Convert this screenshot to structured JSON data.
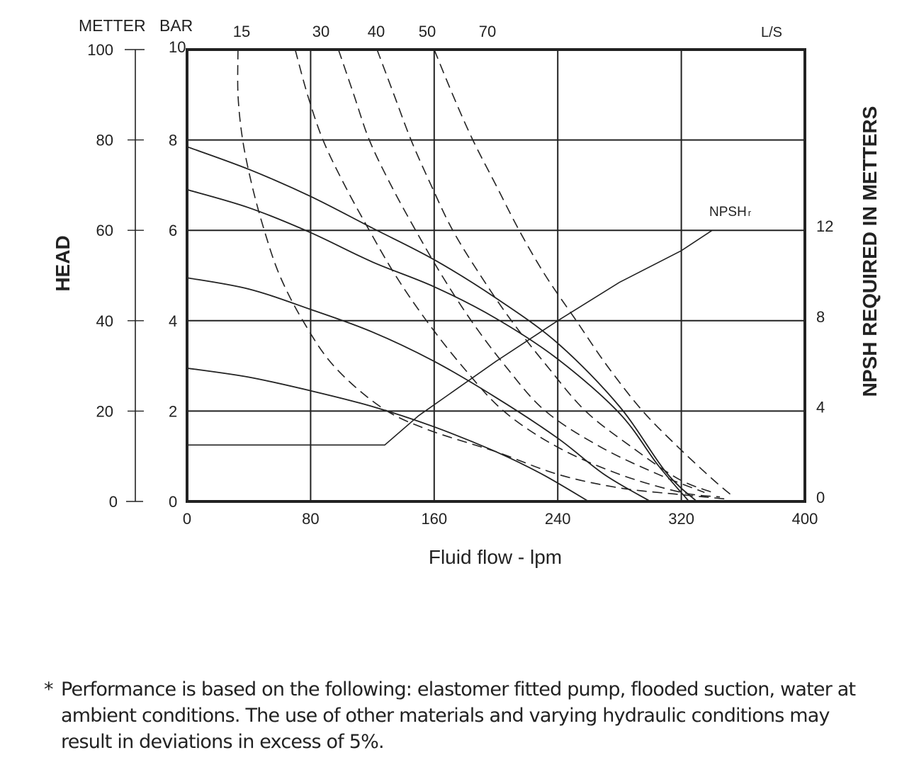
{
  "chart_data": {
    "type": "line",
    "title": "",
    "xlabel": "Fluid flow - lpm",
    "x_ticks": [
      0,
      80,
      160,
      240,
      320,
      400
    ],
    "xlim": [
      0,
      400
    ],
    "top_axis": {
      "unit": "L/S",
      "ticks": [
        "15",
        "30",
        "40",
        "50",
        "70"
      ]
    },
    "left_axis": {
      "title": "HEAD",
      "meter_label": "METTER",
      "bar_label": "BAR",
      "meter_ticks": [
        0,
        20,
        40,
        60,
        80,
        100
      ],
      "bar_ticks": [
        0,
        2,
        4,
        6,
        8,
        10
      ],
      "ylim_meter": [
        0,
        100
      ]
    },
    "right_axis": {
      "title": "NPSH REQUIRED IN METTERS",
      "ticks": [
        0,
        4,
        8,
        12
      ]
    },
    "npsh_label_main": "NPSH",
    "npsh_label_sub": "r",
    "pump_curves": [
      {
        "name": "curve-1",
        "points": [
          [
            0,
            78.5
          ],
          [
            40,
            73.5
          ],
          [
            80,
            67.5
          ],
          [
            120,
            60.5
          ],
          [
            160,
            53.5
          ],
          [
            200,
            45
          ],
          [
            240,
            35
          ],
          [
            280,
            21
          ],
          [
            310,
            6.5
          ],
          [
            330,
            0
          ]
        ]
      },
      {
        "name": "curve-2",
        "points": [
          [
            0,
            69
          ],
          [
            40,
            65
          ],
          [
            80,
            59.5
          ],
          [
            120,
            53
          ],
          [
            160,
            47.5
          ],
          [
            200,
            40.5
          ],
          [
            240,
            31.5
          ],
          [
            280,
            19.5
          ],
          [
            305,
            8
          ],
          [
            325,
            0
          ]
        ]
      },
      {
        "name": "curve-3",
        "points": [
          [
            0,
            49.5
          ],
          [
            40,
            47
          ],
          [
            80,
            42.5
          ],
          [
            120,
            37.5
          ],
          [
            160,
            31
          ],
          [
            200,
            23
          ],
          [
            240,
            14
          ],
          [
            270,
            6
          ],
          [
            300,
            0
          ]
        ]
      },
      {
        "name": "curve-4",
        "points": [
          [
            0,
            29.5
          ],
          [
            40,
            27.5
          ],
          [
            80,
            24.5
          ],
          [
            120,
            21
          ],
          [
            160,
            16.5
          ],
          [
            200,
            11
          ],
          [
            230,
            6
          ],
          [
            260,
            0
          ]
        ]
      }
    ],
    "air_curves": [
      {
        "name": "air-15",
        "points": [
          [
            33,
            100
          ],
          [
            33,
            90
          ],
          [
            36,
            80
          ],
          [
            42,
            70
          ],
          [
            50,
            60
          ],
          [
            60,
            50
          ],
          [
            75,
            40
          ],
          [
            95,
            30
          ],
          [
            125,
            21
          ],
          [
            155,
            16
          ],
          [
            200,
            11
          ],
          [
            240,
            6
          ],
          [
            280,
            3
          ],
          [
            320,
            1.5
          ],
          [
            350,
            0.5
          ]
        ]
      },
      {
        "name": "air-30",
        "points": [
          [
            70,
            100
          ],
          [
            78,
            90
          ],
          [
            88,
            80
          ],
          [
            102,
            70
          ],
          [
            118,
            60
          ],
          [
            135,
            50
          ],
          [
            155,
            40
          ],
          [
            178,
            30
          ],
          [
            205,
            20
          ],
          [
            240,
            12
          ],
          [
            280,
            6
          ],
          [
            320,
            2
          ],
          [
            345,
            1
          ]
        ]
      },
      {
        "name": "air-40",
        "points": [
          [
            98,
            100
          ],
          [
            108,
            90
          ],
          [
            118,
            80
          ],
          [
            132,
            70
          ],
          [
            148,
            60
          ],
          [
            165,
            50
          ],
          [
            184,
            40
          ],
          [
            206,
            30
          ],
          [
            232,
            20
          ],
          [
            268,
            12
          ],
          [
            305,
            6
          ],
          [
            335,
            2
          ]
        ]
      },
      {
        "name": "air-50",
        "points": [
          [
            123,
            100
          ],
          [
            134,
            90
          ],
          [
            145,
            80
          ],
          [
            158,
            70
          ],
          [
            172,
            60
          ],
          [
            190,
            50
          ],
          [
            210,
            40
          ],
          [
            233,
            30
          ],
          [
            258,
            20
          ],
          [
            288,
            12
          ],
          [
            318,
            5
          ],
          [
            340,
            2
          ]
        ]
      },
      {
        "name": "air-70",
        "points": [
          [
            160,
            100
          ],
          [
            172,
            90
          ],
          [
            185,
            80
          ],
          [
            200,
            70
          ],
          [
            215,
            60
          ],
          [
            232,
            50
          ],
          [
            252,
            40
          ],
          [
            272,
            30
          ],
          [
            295,
            20
          ],
          [
            318,
            12
          ],
          [
            340,
            5
          ],
          [
            352,
            1.5
          ]
        ]
      }
    ],
    "npsh_curve": {
      "points": [
        [
          0,
          2.5
        ],
        [
          128,
          2.5
        ],
        [
          150,
          3.8
        ],
        [
          200,
          6.2
        ],
        [
          240,
          8
        ],
        [
          280,
          9.7
        ],
        [
          320,
          11.1
        ],
        [
          340,
          12
        ]
      ]
    }
  },
  "footnote": {
    "marker": "*",
    "text": "Performance is based on the following: elastomer fitted pump, flooded suction, water at ambient conditions. The use of other materials and varying hydraulic conditions may result in deviations in excess of 5%."
  }
}
